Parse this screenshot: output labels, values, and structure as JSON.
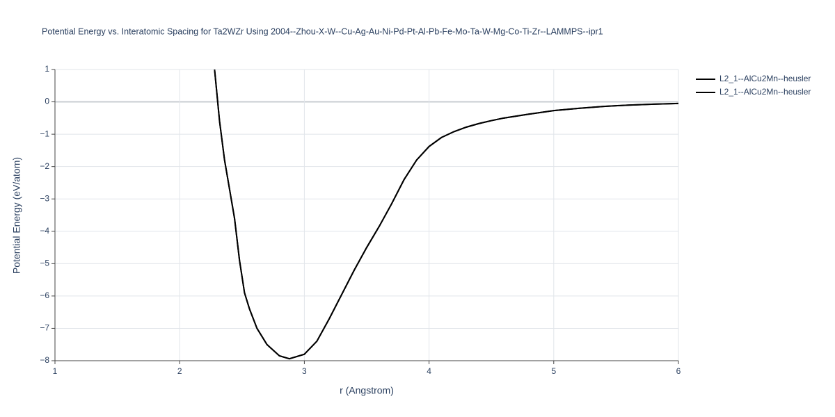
{
  "chart_data": {
    "type": "line",
    "title": "Potential Energy vs. Interatomic Spacing for Ta2WZr Using 2004--Zhou-X-W--Cu-Ag-Au-Ni-Pd-Pt-Al-Pb-Fe-Mo-Ta-W-Mg-Co-Ti-Zr--LAMMPS--ipr1",
    "xlabel": "r (Angstrom)",
    "ylabel": "Potential Energy (eV/atom)",
    "xlim": [
      1,
      6
    ],
    "ylim": [
      -8,
      1
    ],
    "xticks": [
      1,
      2,
      3,
      4,
      5,
      6
    ],
    "yticks": [
      {
        "value": -8,
        "label": "−8"
      },
      {
        "value": -7,
        "label": "−7"
      },
      {
        "value": -6,
        "label": "−6"
      },
      {
        "value": -5,
        "label": "−5"
      },
      {
        "value": -4,
        "label": "−4"
      },
      {
        "value": -3,
        "label": "−3"
      },
      {
        "value": -2,
        "label": "−2"
      },
      {
        "value": -1,
        "label": "−1"
      },
      0,
      1
    ],
    "grid": true,
    "legend": "top-right",
    "x": [
      2.28,
      2.32,
      2.36,
      2.4,
      2.44,
      2.48,
      2.52,
      2.56,
      2.62,
      2.7,
      2.8,
      2.88,
      3.0,
      3.1,
      3.2,
      3.3,
      3.4,
      3.5,
      3.6,
      3.7,
      3.8,
      3.9,
      4.0,
      4.1,
      4.2,
      4.3,
      4.4,
      4.5,
      4.6,
      4.8,
      5.0,
      5.2,
      5.4,
      5.6,
      5.8,
      6.0
    ],
    "series": [
      {
        "name": "L2_1--AlCu2Mn--heusler",
        "color": "#000000",
        "values": [
          1.0,
          -0.6,
          -1.8,
          -2.7,
          -3.6,
          -4.9,
          -5.9,
          -6.4,
          -7.0,
          -7.5,
          -7.85,
          -7.94,
          -7.8,
          -7.4,
          -6.7,
          -5.95,
          -5.2,
          -4.5,
          -3.85,
          -3.15,
          -2.4,
          -1.8,
          -1.38,
          -1.1,
          -0.92,
          -0.78,
          -0.67,
          -0.58,
          -0.5,
          -0.38,
          -0.27,
          -0.2,
          -0.14,
          -0.1,
          -0.07,
          -0.05
        ]
      },
      {
        "name": "L2_1--AlCu2Mn--heusler",
        "color": "#000000",
        "values": [
          1.0,
          -0.6,
          -1.8,
          -2.7,
          -3.6,
          -4.9,
          -5.9,
          -6.4,
          -7.0,
          -7.5,
          -7.85,
          -7.94,
          -7.8,
          -7.4,
          -6.7,
          -5.95,
          -5.2,
          -4.5,
          -3.85,
          -3.15,
          -2.4,
          -1.8,
          -1.38,
          -1.1,
          -0.92,
          -0.78,
          -0.67,
          -0.58,
          -0.5,
          -0.38,
          -0.27,
          -0.2,
          -0.14,
          -0.1,
          -0.07,
          -0.05
        ]
      }
    ]
  }
}
